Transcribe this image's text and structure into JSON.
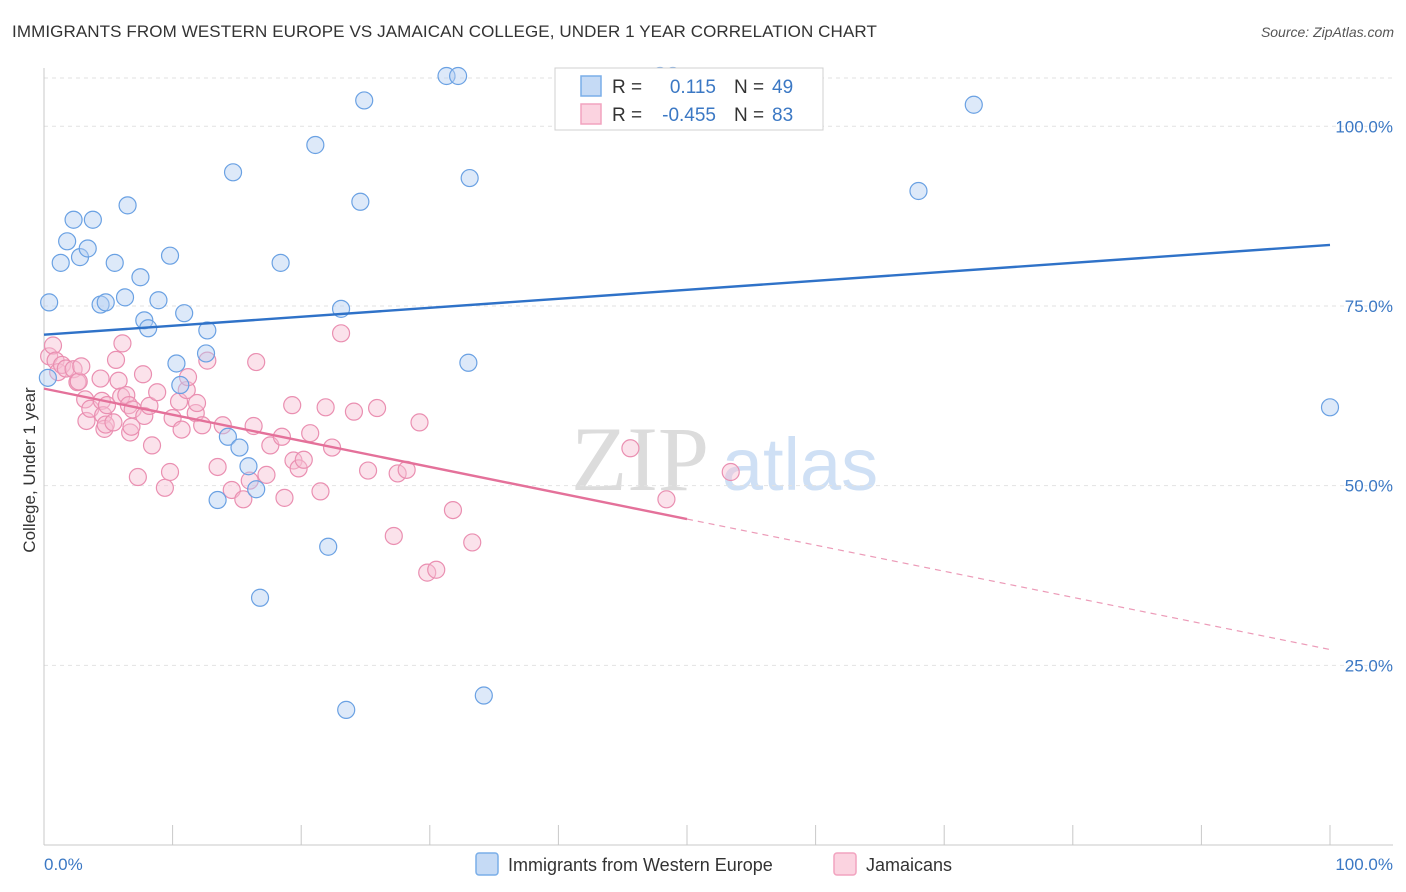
{
  "header": {
    "title": "IMMIGRANTS FROM WESTERN EUROPE VS JAMAICAN COLLEGE, UNDER 1 YEAR CORRELATION CHART",
    "source": "Source: ZipAtlas.com"
  },
  "watermark": {
    "zip": "ZIP",
    "atlas": "atlas"
  },
  "legend": {
    "r_label": "R =",
    "n_label": "N =",
    "blue": {
      "r": "0.115",
      "n": "49",
      "color": "#7aaee8"
    },
    "pink": {
      "r": "-0.455",
      "n": "83",
      "color": "#f2a3bf"
    }
  },
  "chart_data": {
    "type": "scatter",
    "title": "IMMIGRANTS FROM WESTERN EUROPE VS JAMAICAN COLLEGE, UNDER 1 YEAR CORRELATION CHART",
    "xlabel": "",
    "ylabel": "College, Under 1 year",
    "xlim": [
      0,
      100
    ],
    "ylim": [
      0,
      105
    ],
    "x_tick_labels": [
      "0.0%",
      "100.0%"
    ],
    "y_ticks": [
      25,
      50,
      75,
      100
    ],
    "y_tick_labels": [
      "25.0%",
      "50.0%",
      "75.0%",
      "100.0%"
    ],
    "series": [
      {
        "name": "Immigrants from Western Europe",
        "color": "#7aaee8",
        "trend": {
          "x0": 0,
          "y0": 71.0,
          "x1": 100,
          "y1": 83.5,
          "dash_from": 100
        },
        "points": [
          [
            0.3,
            65
          ],
          [
            0.4,
            75.5
          ],
          [
            1.3,
            81
          ],
          [
            1.8,
            84
          ],
          [
            2.3,
            87
          ],
          [
            2.8,
            81.8
          ],
          [
            3.4,
            83
          ],
          [
            3.8,
            87
          ],
          [
            4.4,
            75.2
          ],
          [
            4.8,
            75.5
          ],
          [
            5.5,
            81
          ],
          [
            6.3,
            76.2
          ],
          [
            6.5,
            89
          ],
          [
            7.5,
            79
          ],
          [
            7.8,
            73
          ],
          [
            8.1,
            71.9
          ],
          [
            8.9,
            75.8
          ],
          [
            9.8,
            82
          ],
          [
            10.3,
            67
          ],
          [
            10.6,
            64
          ],
          [
            10.9,
            74
          ],
          [
            12.6,
            68.4
          ],
          [
            12.7,
            71.6
          ],
          [
            13.5,
            48
          ],
          [
            14.3,
            56.8
          ],
          [
            14.7,
            93.6
          ],
          [
            15.2,
            55.3
          ],
          [
            15.9,
            52.7
          ],
          [
            16.5,
            49.5
          ],
          [
            16.8,
            34.4
          ],
          [
            18.4,
            81
          ],
          [
            21.1,
            97.4
          ],
          [
            22.1,
            41.5
          ],
          [
            23.1,
            74.6
          ],
          [
            23.5,
            18.8
          ],
          [
            24.6,
            89.5
          ],
          [
            24.9,
            103.6
          ],
          [
            31.3,
            107
          ],
          [
            32.2,
            107
          ],
          [
            33,
            67.1
          ],
          [
            33.1,
            92.8
          ],
          [
            34.2,
            20.8
          ],
          [
            47.9,
            107
          ],
          [
            48.9,
            107
          ],
          [
            68,
            91
          ],
          [
            72.3,
            103
          ],
          [
            100,
            60.9
          ]
        ]
      },
      {
        "name": "Jamaicans",
        "color": "#f2a3bf",
        "trend": {
          "x0": 0,
          "y0": 63.5,
          "x1": 100,
          "y1": 27.2,
          "dash_from": 50
        },
        "points": [
          [
            0.4,
            68
          ],
          [
            0.7,
            69.5
          ],
          [
            0.9,
            67.4
          ],
          [
            1.1,
            65.8
          ],
          [
            1.4,
            66.8
          ],
          [
            1.7,
            66.3
          ],
          [
            2.3,
            66.2
          ],
          [
            2.6,
            64.4
          ],
          [
            2.7,
            64.5
          ],
          [
            2.9,
            66.6
          ],
          [
            3.2,
            62
          ],
          [
            3.3,
            59
          ],
          [
            3.6,
            60.7
          ],
          [
            4.4,
            64.9
          ],
          [
            4.5,
            61.8
          ],
          [
            4.6,
            59.8
          ],
          [
            4.7,
            57.9
          ],
          [
            4.8,
            58.5
          ],
          [
            4.9,
            61.2
          ],
          [
            5.4,
            58.8
          ],
          [
            5.6,
            67.5
          ],
          [
            5.8,
            64.6
          ],
          [
            6,
            62.4
          ],
          [
            6.1,
            69.8
          ],
          [
            6.4,
            62.6
          ],
          [
            6.6,
            61.2
          ],
          [
            6.7,
            57.4
          ],
          [
            6.8,
            58.2
          ],
          [
            6.9,
            60.6
          ],
          [
            7.3,
            51.2
          ],
          [
            7.7,
            65.5
          ],
          [
            7.8,
            59.7
          ],
          [
            8.2,
            61.1
          ],
          [
            8.4,
            55.6
          ],
          [
            8.8,
            63
          ],
          [
            9.4,
            49.7
          ],
          [
            9.8,
            51.9
          ],
          [
            10,
            59.4
          ],
          [
            10.5,
            61.7
          ],
          [
            10.7,
            57.8
          ],
          [
            11.1,
            63.3
          ],
          [
            11.2,
            65.1
          ],
          [
            11.8,
            60.1
          ],
          [
            11.9,
            61.5
          ],
          [
            12.3,
            58.4
          ],
          [
            12.7,
            67.4
          ],
          [
            13.5,
            52.6
          ],
          [
            13.9,
            58.4
          ],
          [
            14.6,
            49.4
          ],
          [
            15.5,
            48.1
          ],
          [
            16,
            50.7
          ],
          [
            16.3,
            58.3
          ],
          [
            16.5,
            67.2
          ],
          [
            17.3,
            51.5
          ],
          [
            17.6,
            55.6
          ],
          [
            18.5,
            56.8
          ],
          [
            18.7,
            48.3
          ],
          [
            19.3,
            61.2
          ],
          [
            19.4,
            53.5
          ],
          [
            19.8,
            52.4
          ],
          [
            20.2,
            53.6
          ],
          [
            20.7,
            57.3
          ],
          [
            21.5,
            49.2
          ],
          [
            21.9,
            60.9
          ],
          [
            22.4,
            55.3
          ],
          [
            23.1,
            71.2
          ],
          [
            24.1,
            60.3
          ],
          [
            25.2,
            52.1
          ],
          [
            25.9,
            60.8
          ],
          [
            27.2,
            43
          ],
          [
            27.5,
            51.7
          ],
          [
            28.2,
            52.2
          ],
          [
            29.2,
            58.8
          ],
          [
            29.8,
            37.9
          ],
          [
            30.5,
            38.3
          ],
          [
            31.8,
            46.6
          ],
          [
            33.3,
            42.1
          ],
          [
            45.6,
            55.2
          ],
          [
            48.4,
            48.1
          ],
          [
            53.4,
            51.9
          ]
        ]
      }
    ]
  },
  "bottom_legend": {
    "blue_label": "Immigrants from Western Europe",
    "pink_label": "Jamaicans"
  }
}
